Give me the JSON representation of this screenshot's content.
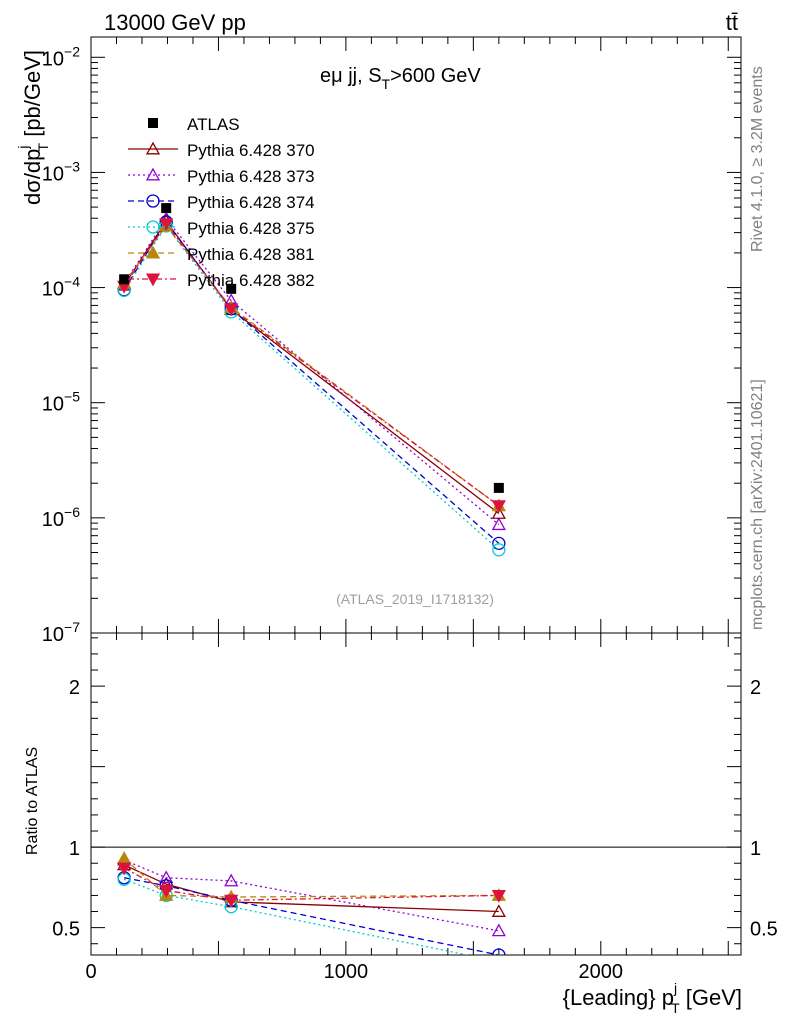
{
  "header": {
    "energy_label": "13000 GeV pp",
    "process_label": "tt̄",
    "selection_label": "eμ jj, S",
    "selection_sub": "T",
    "selection_rest": ">600 GeV",
    "analysis_id": "(ATLAS_2019_I1718132)",
    "side_rivet": "Rivet 4.1.0, ≥ 3.2M events",
    "side_source": "mcplots.cern.ch [arXiv:2401.10621]"
  },
  "chart_data": {
    "type": "line",
    "x_label": {
      "main": "{Leading} p",
      "sup": "j",
      "sub": "T",
      "unit": " [GeV]"
    },
    "y_label_top": {
      "main": "dσ/dp",
      "sup": "j",
      "sub": "T",
      "unit": " [pb/GeV]"
    },
    "y_label_bottom": "Ratio to ATLAS",
    "xlim": [
      0,
      2550
    ],
    "ylim_top": [
      1e-07,
      0.015
    ],
    "ylim_bottom": [
      0.33,
      2.33
    ],
    "x_ticks": [
      0,
      1000,
      2000
    ],
    "x_tick_labels": [
      "0",
      "1000",
      "2000"
    ],
    "y_ticks_top": [
      {
        "exp": -7,
        "label": "10",
        "sup": "−7"
      },
      {
        "exp": -6,
        "label": "10",
        "sup": "−6"
      },
      {
        "exp": -5,
        "label": "10",
        "sup": "−5"
      },
      {
        "exp": -4,
        "label": "10",
        "sup": "−4"
      },
      {
        "exp": -3,
        "label": "10",
        "sup": "−3"
      },
      {
        "exp": -2,
        "label": "10",
        "sup": "−2"
      }
    ],
    "y_ticks_bottom": [
      {
        "value": 0.5,
        "label": "0.5"
      },
      {
        "value": 1,
        "label": "1"
      },
      {
        "value": 2,
        "label": "2"
      }
    ],
    "x": [
      130,
      295,
      550,
      1600
    ],
    "data": {
      "name": "ATLAS",
      "values": [
        0.000118,
        0.00049,
        9.75e-05,
        1.82e-06
      ]
    },
    "series": [
      {
        "name": "Pythia 6.428 370",
        "color": "#8b0000",
        "marker": "triangle-open",
        "dash": "",
        "ratios": [
          0.89,
          0.77,
          0.66,
          0.6
        ]
      },
      {
        "name": "Pythia 6.428 373",
        "color": "#9400d3",
        "marker": "triangle-open",
        "dash": "2,3",
        "ratios": [
          0.92,
          0.81,
          0.79,
          0.48
        ]
      },
      {
        "name": "Pythia 6.428 374",
        "color": "#0000cd",
        "marker": "circle-open",
        "dash": "6,4",
        "ratios": [
          0.81,
          0.76,
          0.67,
          0.33
        ]
      },
      {
        "name": "Pythia 6.428 375",
        "color": "#00ced1",
        "marker": "circle-open",
        "dash": "2,3",
        "ratios": [
          0.8,
          0.7,
          0.63,
          0.29
        ]
      },
      {
        "name": "Pythia 6.428 381",
        "color": "#b8860b",
        "marker": "triangle-filled",
        "dash": "6,4",
        "ratios": [
          0.93,
          0.7,
          0.69,
          0.7
        ]
      },
      {
        "name": "Pythia 6.428 382",
        "color": "#dc143c",
        "marker": "triangle-down-filled",
        "dash": "6,3,2,3",
        "ratios": [
          0.87,
          0.73,
          0.67,
          0.7
        ]
      }
    ]
  }
}
